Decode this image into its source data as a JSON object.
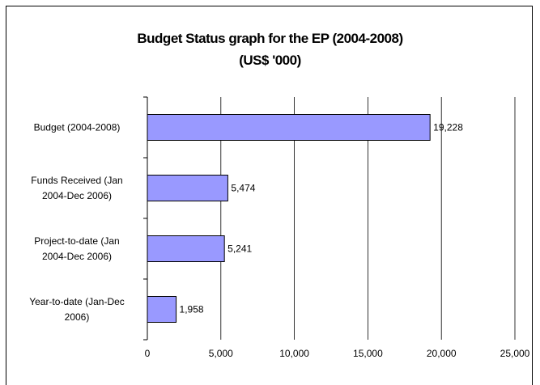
{
  "chart_data": {
    "type": "bar",
    "orientation": "horizontal",
    "title": "Budget Status graph for the EP (2004-2008)",
    "subtitle": "(US$ '000)",
    "categories": [
      [
        "Budget (2004-2008)"
      ],
      [
        "Funds Received (Jan",
        "2004-Dec 2006)"
      ],
      [
        "Project-to-date (Jan",
        "2004-Dec 2006)"
      ],
      [
        "Year-to-date (Jan-Dec",
        "2006)"
      ]
    ],
    "values": [
      19228,
      5474,
      5241,
      1958
    ],
    "value_labels": [
      "19,228",
      "5,474",
      "5,241",
      "1,958"
    ],
    "xlim": [
      0,
      25000
    ],
    "x_ticks": [
      0,
      5000,
      10000,
      15000,
      20000,
      25000
    ],
    "x_tick_labels": [
      "0",
      "5,000",
      "10,000",
      "15,000",
      "20,000",
      "25,000"
    ],
    "grid": true,
    "legend": "none",
    "bar_color": "#9999ff"
  }
}
